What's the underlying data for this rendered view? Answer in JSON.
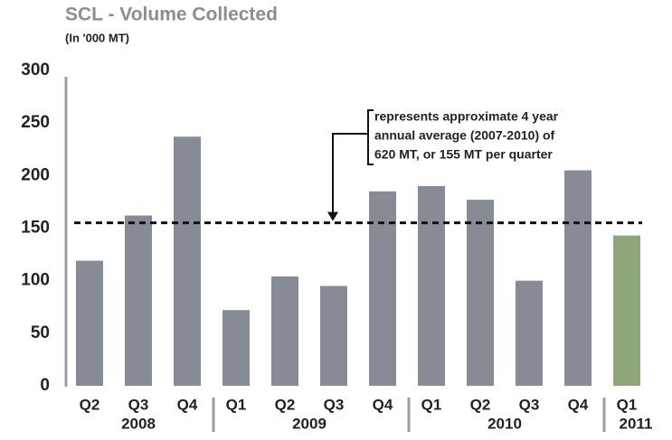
{
  "chart_data": {
    "type": "bar",
    "title": "SCL - Volume Collected",
    "subtitle": "(In '000 MT)",
    "categories": [
      "Q2",
      "Q3",
      "Q4",
      "Q1",
      "Q2",
      "Q3",
      "Q4",
      "Q1",
      "Q2",
      "Q3",
      "Q4",
      "Q1"
    ],
    "values": [
      119,
      162,
      237,
      72,
      104,
      95,
      185,
      190,
      177,
      100,
      205,
      143
    ],
    "colors": [
      "#878b95",
      "#878b95",
      "#878b95",
      "#878b95",
      "#878b95",
      "#878b95",
      "#878b95",
      "#878b95",
      "#878b95",
      "#878b95",
      "#878b95",
      "#8fa67c"
    ],
    "groups": [
      {
        "name": "2008",
        "size": 3
      },
      {
        "name": "2009",
        "size": 4
      },
      {
        "name": "2010",
        "size": 4
      },
      {
        "name": "2011",
        "size": 1
      }
    ],
    "ylim": [
      0,
      300
    ],
    "yticks": [
      0,
      50,
      100,
      150,
      200,
      250,
      300
    ],
    "grid": false,
    "reference_line": {
      "value": 155,
      "annotation": [
        "represents approximate 4 year",
        "annual average (2007-2010) of",
        "620 MT, or 155 MT per quarter"
      ]
    }
  }
}
